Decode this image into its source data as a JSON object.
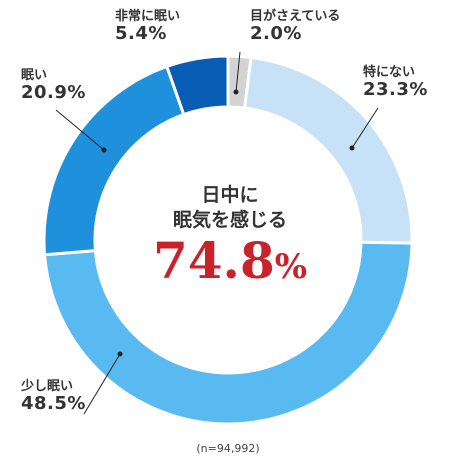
{
  "chart_data": {
    "type": "pie",
    "categories": [
      "目がさえている",
      "特にない",
      "少し眠い",
      "眠い",
      "非常に眠い"
    ],
    "values": [
      2.0,
      23.3,
      48.5,
      20.9,
      5.4
    ],
    "value_labels": [
      "2.0%",
      "23.3%",
      "48.5%",
      "20.9%",
      "5.4%"
    ],
    "colors": [
      "#d3d3d3",
      "#c7e2f7",
      "#58baf0",
      "#1e90dc",
      "#0a5db5"
    ],
    "center": {
      "line1": "日中に",
      "line2": "眠気を感じる",
      "value": "74.8",
      "unit": "%"
    },
    "footnote": "(n=94,992)"
  }
}
